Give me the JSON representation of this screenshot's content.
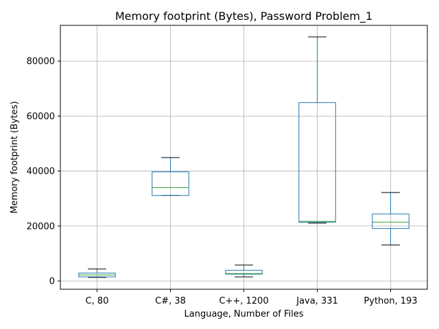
{
  "chart_data": {
    "type": "boxplot",
    "title": "Memory footprint (Bytes), Password Problem_1",
    "xlabel": "Language, Number of Files",
    "ylabel": "Memory footprint (Bytes)",
    "ylim": [
      -3000,
      93000
    ],
    "yticks": [
      0,
      20000,
      40000,
      60000,
      80000
    ],
    "grid": true,
    "categories": [
      "C, 80",
      "C#, 38",
      "C++, 1200",
      "Java, 331",
      "Python, 193"
    ],
    "boxes": [
      {
        "whisker_low": 1300,
        "q1": 1500,
        "median": 2200,
        "q3": 2900,
        "whisker_high": 4400
      },
      {
        "whisker_low": 31100,
        "q1": 31100,
        "median": 34000,
        "q3": 39700,
        "whisker_high": 44900
      },
      {
        "whisker_low": 1500,
        "q1": 2500,
        "median": 2700,
        "q3": 3900,
        "whisker_high": 5800
      },
      {
        "whisker_low": 21100,
        "q1": 21400,
        "median": 21700,
        "q3": 64900,
        "whisker_high": 88800
      },
      {
        "whisker_low": 13100,
        "q1": 19100,
        "median": 21400,
        "q3": 24400,
        "whisker_high": 32200
      }
    ],
    "colors": {
      "box": "#1f77b4",
      "median": "#2ca02c",
      "cap": "#000000",
      "grid": "#b0b0b0"
    }
  }
}
